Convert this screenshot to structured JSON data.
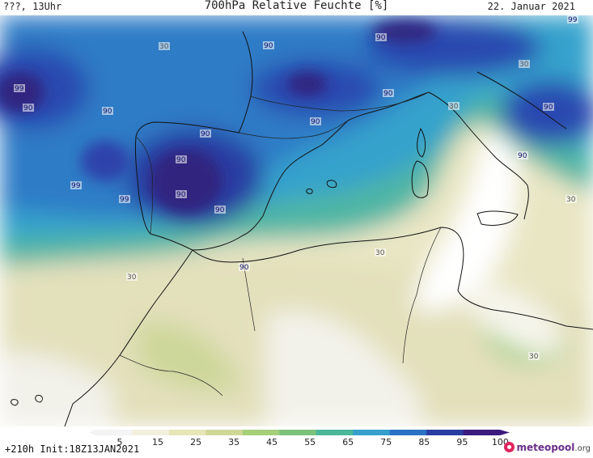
{
  "header": {
    "left": "???, 13Uhr",
    "title": "700hPa Relative Feuchte [%]",
    "date": "22. Januar 2021"
  },
  "map": {
    "field": "700hPa relative humidity",
    "region": "Western Mediterranean / Iberia / North Africa",
    "isoline_labels": [
      "30",
      "90",
      "90",
      "99",
      "90",
      "90",
      "90",
      "90",
      "90",
      "99",
      "99",
      "90",
      "90",
      "90",
      "30",
      "90",
      "99",
      "90",
      "30",
      "90",
      "30",
      "30",
      "30",
      "30"
    ]
  },
  "legend": {
    "ticks": [
      "5",
      "15",
      "25",
      "35",
      "45",
      "55",
      "65",
      "75",
      "85",
      "95",
      "100"
    ],
    "colors": [
      "#f4f4f4",
      "#f2f0dc",
      "#e6e6b6",
      "#cfd896",
      "#a6cf7a",
      "#7cc27a",
      "#4cb89a",
      "#35a0cc",
      "#2a73c4",
      "#2a3ea2",
      "#3c1a7e"
    ]
  },
  "footer": {
    "run_info": "+210h Init:18Z13JAN2021",
    "brand_main": "meteopool",
    "brand_tld": ".org"
  }
}
